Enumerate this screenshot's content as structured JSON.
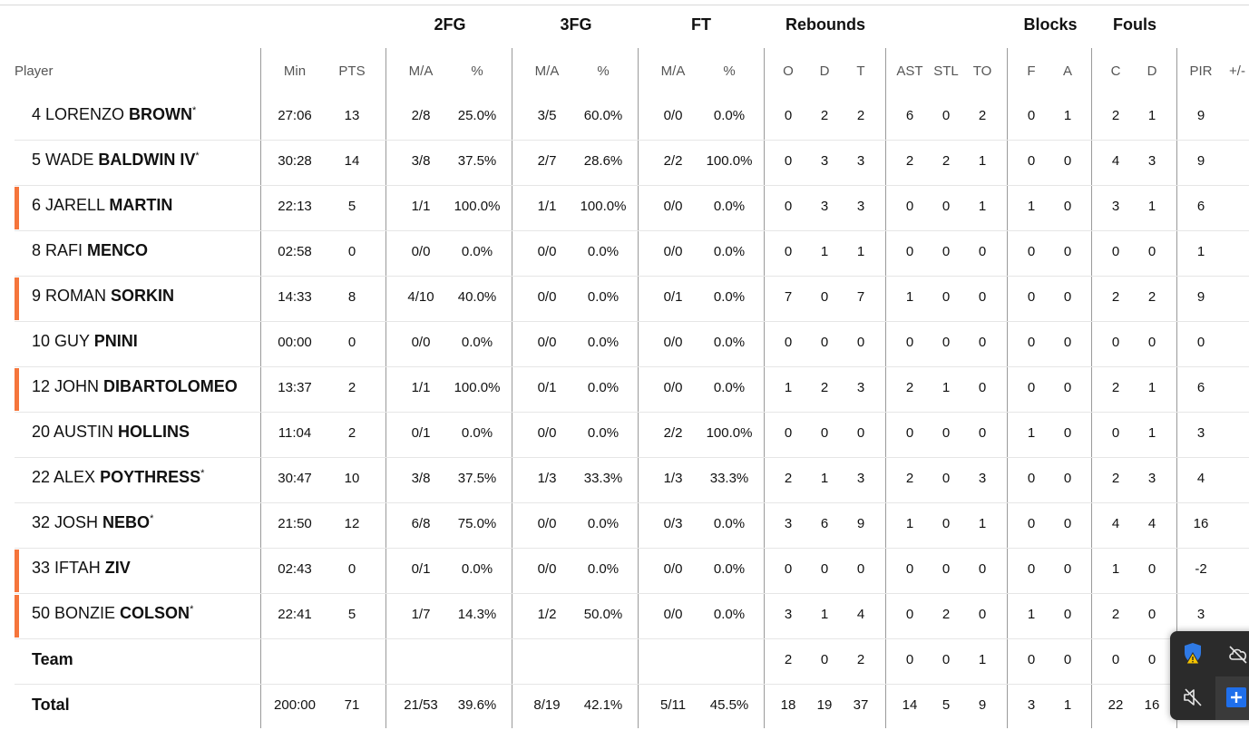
{
  "groups": {
    "fg2": "2FG",
    "fg3": "3FG",
    "ft": "FT",
    "rebounds": "Rebounds",
    "blocks": "Blocks",
    "fouls": "Fouls"
  },
  "columns": [
    "Player",
    "Min",
    "PTS",
    "M/A",
    "%",
    "M/A",
    "%",
    "M/A",
    "%",
    "O",
    "D",
    "T",
    "AST",
    "STL",
    "TO",
    "F",
    "A",
    "C",
    "D",
    "PIR",
    "+/-"
  ],
  "players": [
    {
      "num": "4",
      "first": "LORENZO",
      "last": "BROWN",
      "starter": true,
      "accent": false,
      "stats": [
        "27:06",
        "13",
        "2/8",
        "25.0%",
        "3/5",
        "60.0%",
        "0/0",
        "0.0%",
        "0",
        "2",
        "2",
        "6",
        "0",
        "2",
        "0",
        "1",
        "2",
        "1",
        "9"
      ]
    },
    {
      "num": "5",
      "first": "WADE",
      "last": "BALDWIN IV",
      "starter": true,
      "accent": false,
      "stats": [
        "30:28",
        "14",
        "3/8",
        "37.5%",
        "2/7",
        "28.6%",
        "2/2",
        "100.0%",
        "0",
        "3",
        "3",
        "2",
        "2",
        "1",
        "0",
        "0",
        "4",
        "3",
        "9"
      ]
    },
    {
      "num": "6",
      "first": "JARELL",
      "last": "MARTIN",
      "starter": false,
      "accent": true,
      "stats": [
        "22:13",
        "5",
        "1/1",
        "100.0%",
        "1/1",
        "100.0%",
        "0/0",
        "0.0%",
        "0",
        "3",
        "3",
        "0",
        "0",
        "1",
        "1",
        "0",
        "3",
        "1",
        "6"
      ]
    },
    {
      "num": "8",
      "first": "RAFI",
      "last": "MENCO",
      "starter": false,
      "accent": false,
      "stats": [
        "02:58",
        "0",
        "0/0",
        "0.0%",
        "0/0",
        "0.0%",
        "0/0",
        "0.0%",
        "0",
        "1",
        "1",
        "0",
        "0",
        "0",
        "0",
        "0",
        "0",
        "0",
        "1"
      ]
    },
    {
      "num": "9",
      "first": "ROMAN",
      "last": "SORKIN",
      "starter": false,
      "accent": true,
      "stats": [
        "14:33",
        "8",
        "4/10",
        "40.0%",
        "0/0",
        "0.0%",
        "0/1",
        "0.0%",
        "7",
        "0",
        "7",
        "1",
        "0",
        "0",
        "0",
        "0",
        "2",
        "2",
        "9"
      ]
    },
    {
      "num": "10",
      "first": "GUY",
      "last": "PNINI",
      "starter": false,
      "accent": false,
      "stats": [
        "00:00",
        "0",
        "0/0",
        "0.0%",
        "0/0",
        "0.0%",
        "0/0",
        "0.0%",
        "0",
        "0",
        "0",
        "0",
        "0",
        "0",
        "0",
        "0",
        "0",
        "0",
        "0"
      ]
    },
    {
      "num": "12",
      "first": "JOHN",
      "last": "DIBARTOLOMEO",
      "starter": false,
      "accent": true,
      "stats": [
        "13:37",
        "2",
        "1/1",
        "100.0%",
        "0/1",
        "0.0%",
        "0/0",
        "0.0%",
        "1",
        "2",
        "3",
        "2",
        "1",
        "0",
        "0",
        "0",
        "2",
        "1",
        "6"
      ]
    },
    {
      "num": "20",
      "first": "AUSTIN",
      "last": "HOLLINS",
      "starter": false,
      "accent": false,
      "stats": [
        "11:04",
        "2",
        "0/1",
        "0.0%",
        "0/0",
        "0.0%",
        "2/2",
        "100.0%",
        "0",
        "0",
        "0",
        "0",
        "0",
        "0",
        "1",
        "0",
        "0",
        "1",
        "3"
      ]
    },
    {
      "num": "22",
      "first": "ALEX",
      "last": "POYTHRESS",
      "starter": true,
      "accent": false,
      "stats": [
        "30:47",
        "10",
        "3/8",
        "37.5%",
        "1/3",
        "33.3%",
        "1/3",
        "33.3%",
        "2",
        "1",
        "3",
        "2",
        "0",
        "3",
        "0",
        "0",
        "2",
        "3",
        "4"
      ]
    },
    {
      "num": "32",
      "first": "JOSH",
      "last": "NEBO",
      "starter": true,
      "accent": false,
      "stats": [
        "21:50",
        "12",
        "6/8",
        "75.0%",
        "0/0",
        "0.0%",
        "0/3",
        "0.0%",
        "3",
        "6",
        "9",
        "1",
        "0",
        "1",
        "0",
        "0",
        "4",
        "4",
        "16"
      ]
    },
    {
      "num": "33",
      "first": "IFTAH",
      "last": "ZIV",
      "starter": false,
      "accent": true,
      "stats": [
        "02:43",
        "0",
        "0/1",
        "0.0%",
        "0/0",
        "0.0%",
        "0/0",
        "0.0%",
        "0",
        "0",
        "0",
        "0",
        "0",
        "0",
        "0",
        "0",
        "1",
        "0",
        "-2"
      ]
    },
    {
      "num": "50",
      "first": "BONZIE",
      "last": "COLSON",
      "starter": true,
      "accent": true,
      "stats": [
        "22:41",
        "5",
        "1/7",
        "14.3%",
        "1/2",
        "50.0%",
        "0/0",
        "0.0%",
        "3",
        "1",
        "4",
        "0",
        "2",
        "0",
        "1",
        "0",
        "2",
        "0",
        "3"
      ]
    }
  ],
  "team": {
    "label": "Team",
    "stats": [
      "",
      "",
      "",
      "",
      "",
      "",
      "",
      "",
      "2",
      "0",
      "2",
      "0",
      "0",
      "1",
      "0",
      "0",
      "0",
      "0",
      ""
    ]
  },
  "total": {
    "label": "Total",
    "stats": [
      "200:00",
      "71",
      "21/53",
      "39.6%",
      "8/19",
      "42.1%",
      "5/11",
      "45.5%",
      "18",
      "19",
      "37",
      "14",
      "5",
      "9",
      "3",
      "1",
      "22",
      "16",
      ""
    ]
  },
  "starter_mark": "*",
  "colors": {
    "accent": "#f5753b",
    "tray_bg": "#2b2b2b",
    "tray_highlight": "#1f6feb"
  },
  "tray": {
    "icons": [
      "defender-warning-icon",
      "cloud-offline-icon",
      "speaker-muted-icon",
      "add-icon"
    ]
  }
}
